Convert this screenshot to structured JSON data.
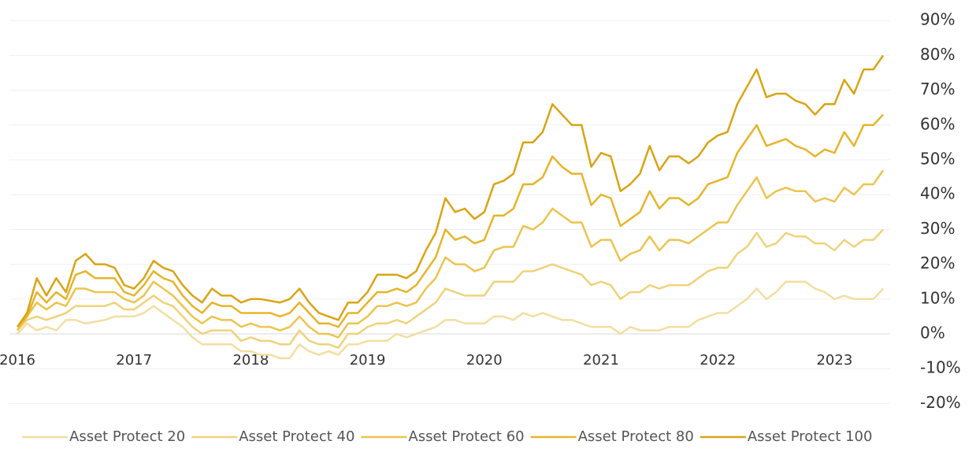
{
  "chart_data": {
    "type": "line",
    "categories": [
      "2016",
      null,
      null,
      null,
      null,
      null,
      null,
      null,
      null,
      null,
      null,
      null,
      "2017",
      null,
      null,
      null,
      null,
      null,
      null,
      null,
      null,
      null,
      null,
      null,
      "2018",
      null,
      null,
      null,
      null,
      null,
      null,
      null,
      null,
      null,
      null,
      null,
      "2019",
      null,
      null,
      null,
      null,
      null,
      null,
      null,
      null,
      null,
      null,
      null,
      "2020",
      null,
      null,
      null,
      null,
      null,
      null,
      null,
      null,
      null,
      null,
      null,
      "2021",
      null,
      null,
      null,
      null,
      null,
      null,
      null,
      null,
      null,
      null,
      null,
      "2022",
      null,
      null,
      null,
      null,
      null,
      null,
      null,
      null,
      null,
      null,
      null,
      "2023",
      null,
      null,
      null,
      null,
      null
    ],
    "series": [
      {
        "name": "Asset Protect 20",
        "color": "#f3dea0",
        "values": [
          0,
          3,
          1,
          2,
          1,
          4,
          4,
          3,
          3.5,
          4,
          5,
          5,
          5,
          6,
          8,
          6,
          4,
          2,
          -1,
          -3,
          -3,
          -3,
          -3,
          -5,
          -5,
          -6,
          -6,
          -7,
          -7,
          -3,
          -5,
          -6,
          -5,
          -6,
          -3,
          -3,
          -2,
          -2,
          -2,
          0,
          -1,
          0,
          1,
          2,
          4,
          4,
          3,
          3,
          3,
          5,
          5,
          4,
          6,
          5,
          6,
          5,
          4,
          4,
          3,
          2,
          2,
          2,
          0,
          2,
          1,
          1,
          1,
          2,
          2,
          2,
          4,
          5,
          6,
          6,
          8,
          10,
          13,
          10,
          12,
          15,
          15,
          15,
          13,
          12,
          10,
          11,
          10,
          10,
          10,
          13
        ]
      },
      {
        "name": "Asset Protect 40",
        "color": "#efd27a",
        "values": [
          1,
          4,
          5,
          4,
          5,
          6,
          8,
          8,
          8,
          8,
          9,
          7,
          7,
          9,
          11,
          9,
          8,
          5,
          2,
          0,
          1,
          1,
          1,
          -2,
          -1,
          -2,
          -2,
          -3,
          -3,
          1,
          -2,
          -3,
          -3,
          -4,
          0,
          0,
          2,
          3,
          3,
          4,
          3,
          5,
          7,
          9,
          13,
          12,
          11,
          11,
          11,
          15,
          15,
          15,
          18,
          18,
          19,
          20,
          19,
          18,
          17,
          14,
          15,
          14,
          10,
          12,
          12,
          14,
          13,
          14,
          14,
          14,
          16,
          18,
          19,
          19,
          23,
          25,
          29,
          25,
          26,
          29,
          28,
          28,
          26,
          26,
          24,
          27,
          25,
          27,
          27,
          30
        ]
      },
      {
        "name": "Asset Protect 60",
        "color": "#ecc44f",
        "values": [
          1,
          5,
          9,
          7,
          9,
          8,
          13,
          13,
          12,
          12,
          12,
          10,
          9,
          11,
          15,
          13,
          11,
          8,
          5,
          3,
          5,
          4,
          4,
          2,
          3,
          2,
          2,
          1,
          2,
          5,
          2,
          0,
          0,
          -1,
          3,
          3,
          5,
          8,
          8,
          9,
          8,
          9,
          13,
          16,
          22,
          20,
          20,
          18,
          19,
          24,
          25,
          25,
          31,
          30,
          32,
          36,
          34,
          32,
          32,
          25,
          27,
          27,
          21,
          23,
          24,
          28,
          24,
          27,
          27,
          26,
          28,
          30,
          32,
          32,
          37,
          41,
          45,
          39,
          41,
          42,
          41,
          41,
          38,
          39,
          38,
          42,
          40,
          43,
          43,
          47
        ]
      },
      {
        "name": "Asset Protect 80",
        "color": "#e5b52a",
        "values": [
          2,
          5,
          12,
          9,
          12,
          10,
          17,
          18,
          16,
          16,
          16,
          12,
          11,
          14,
          18,
          16,
          15,
          11,
          8,
          6,
          9,
          8,
          8,
          6,
          6,
          6,
          6,
          5,
          6,
          9,
          6,
          3,
          3,
          2,
          6,
          6,
          9,
          12,
          12,
          13,
          12,
          14,
          18,
          22,
          30,
          27,
          28,
          26,
          27,
          34,
          34,
          36,
          43,
          43,
          45,
          51,
          48,
          46,
          46,
          37,
          40,
          39,
          31,
          33,
          35,
          41,
          36,
          39,
          39,
          37,
          39,
          43,
          44,
          45,
          52,
          56,
          60,
          54,
          55,
          56,
          54,
          53,
          51,
          53,
          52,
          58,
          54,
          60,
          60,
          63
        ]
      },
      {
        "name": "Asset Protect 100",
        "color": "#d9a414",
        "values": [
          2,
          6,
          16,
          11,
          16,
          12,
          21,
          23,
          20,
          20,
          19,
          14,
          13,
          16,
          21,
          19,
          18,
          14,
          11,
          9,
          13,
          11,
          11,
          9,
          10,
          10,
          9.5,
          9,
          10,
          13,
          9,
          6,
          5,
          4,
          9,
          9,
          12,
          17,
          17,
          17,
          16,
          18,
          24,
          29,
          39,
          35,
          36,
          33,
          35,
          43,
          44,
          46,
          55,
          55,
          58,
          66,
          63,
          60,
          60,
          48,
          52,
          51,
          41,
          43,
          46,
          54,
          47,
          51,
          51,
          49,
          51,
          55,
          57,
          58,
          66,
          71,
          76,
          68,
          69,
          69,
          67,
          66,
          63,
          66,
          66,
          73,
          69,
          76,
          76,
          80
        ]
      }
    ],
    "ylim": [
      -20,
      90
    ],
    "yticks": [
      {
        "value": -20,
        "label": "-20%"
      },
      {
        "value": -10,
        "label": "-10%"
      },
      {
        "value": 0,
        "label": "0%"
      },
      {
        "value": 10,
        "label": "10%"
      },
      {
        "value": 20,
        "label": "20%"
      },
      {
        "value": 30,
        "label": "30%"
      },
      {
        "value": 40,
        "label": "40%"
      },
      {
        "value": 50,
        "label": "50%"
      },
      {
        "value": 60,
        "label": "60%"
      },
      {
        "value": 70,
        "label": "70%"
      },
      {
        "value": 80,
        "label": "80%"
      },
      {
        "value": 90,
        "label": "90%"
      }
    ],
    "grid": true,
    "legend": "bottom"
  }
}
